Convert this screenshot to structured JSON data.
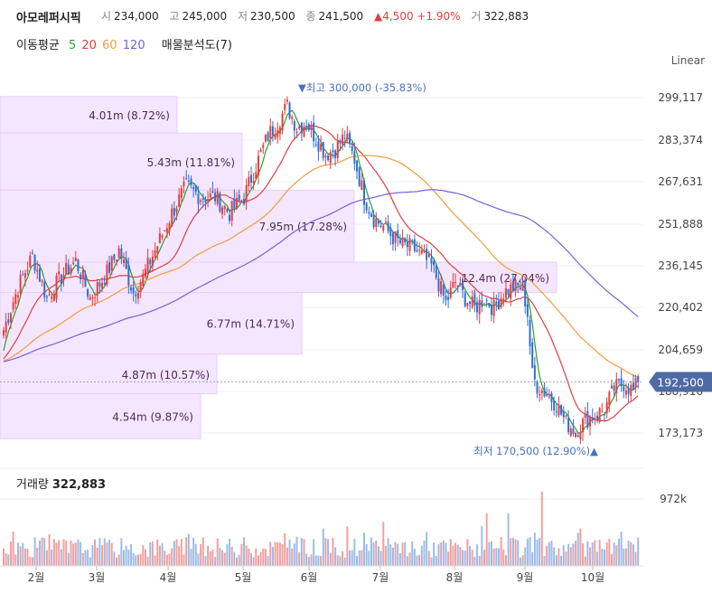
{
  "header": {
    "name": "아모레퍼시픽",
    "open_label": "시",
    "open": "234,000",
    "high_label": "고",
    "high": "245,000",
    "low_label": "저",
    "low": "230,500",
    "close_label": "종",
    "close": "241,500",
    "change": "▲4,500 +1.90%",
    "volume_label": "거",
    "volume": "322,883"
  },
  "indicators": {
    "ma_label": "이동평균",
    "ma": [
      {
        "period": "5",
        "color": "#2ca02c"
      },
      {
        "period": "20",
        "color": "#e03f3f"
      },
      {
        "period": "60",
        "color": "#f39c3c"
      },
      {
        "period": "120",
        "color": "#7b5fd6"
      }
    ],
    "vp_label": "매물분석도(7)"
  },
  "scale_mode": "Linear",
  "volume_panel": {
    "label": "거래량",
    "value": "322,883",
    "tick": "972k"
  },
  "chart_data": {
    "type": "candlestick",
    "y_ticks": [
      "299,117",
      "283,374",
      "267,631",
      "251,888",
      "236,145",
      "220,402",
      "204,659",
      "188,916",
      "173,173"
    ],
    "y_range": [
      166000,
      306000
    ],
    "x_ticks": [
      "2월",
      "3월",
      "4월",
      "5월",
      "6월",
      "7월",
      "8월",
      "9월",
      "10월"
    ],
    "last_price_label": "192,500",
    "last_price": 192500,
    "max_annotation": "▼최고 300,000 (-35.83%)",
    "min_annotation": "최저 170,500 (12.90%)▲",
    "volume_profile": [
      {
        "label": "4.01m (8.72%)",
        "price_range": [
          286000,
          299500
        ]
      },
      {
        "label": "5.43m (11.81%)",
        "price_range": [
          264500,
          286000
        ]
      },
      {
        "label": "7.95m (17.28%)",
        "price_range": [
          237500,
          264500
        ]
      },
      {
        "label": "12.4m (27.04%)",
        "price_range": [
          226000,
          237500
        ]
      },
      {
        "label": "6.77m (14.71%)",
        "price_range": [
          203000,
          226000
        ]
      },
      {
        "label": "4.87m (10.57%)",
        "price_range": [
          188000,
          203000
        ]
      },
      {
        "label": "4.54m (9.87%)",
        "price_range": [
          171000,
          188000
        ]
      }
    ],
    "trend_points": [
      [
        0,
        212000
      ],
      [
        6,
        228000
      ],
      [
        12,
        240000
      ],
      [
        18,
        224000
      ],
      [
        24,
        232000
      ],
      [
        30,
        238000
      ],
      [
        36,
        224000
      ],
      [
        42,
        232000
      ],
      [
        48,
        242000
      ],
      [
        54,
        226000
      ],
      [
        58,
        232000
      ],
      [
        64,
        244000
      ],
      [
        70,
        256000
      ],
      [
        76,
        266000
      ],
      [
        82,
        262000
      ],
      [
        88,
        262000
      ],
      [
        94,
        256000
      ],
      [
        100,
        262000
      ],
      [
        106,
        276000
      ],
      [
        110,
        285000
      ],
      [
        114,
        290000
      ],
      [
        118,
        296000
      ],
      [
        122,
        288000
      ],
      [
        126,
        290000
      ],
      [
        130,
        284000
      ],
      [
        134,
        278000
      ],
      [
        138,
        280000
      ],
      [
        142,
        285000
      ],
      [
        146,
        276000
      ],
      [
        150,
        262000
      ],
      [
        154,
        254000
      ],
      [
        158,
        251000
      ],
      [
        162,
        247000
      ],
      [
        166,
        244000
      ],
      [
        170,
        243000
      ],
      [
        174,
        240000
      ],
      [
        178,
        236000
      ],
      [
        180,
        232000
      ],
      [
        184,
        222000
      ],
      [
        188,
        230000
      ],
      [
        192,
        224000
      ],
      [
        196,
        220000
      ],
      [
        200,
        224000
      ],
      [
        204,
        220000
      ],
      [
        208,
        226000
      ],
      [
        212,
        228000
      ],
      [
        216,
        228000
      ],
      [
        218,
        218000
      ],
      [
        220,
        195000
      ],
      [
        222,
        191000
      ],
      [
        226,
        188000
      ],
      [
        230,
        184000
      ],
      [
        234,
        177000
      ],
      [
        238,
        174000
      ],
      [
        242,
        178000
      ],
      [
        246,
        180000
      ],
      [
        250,
        182000
      ],
      [
        254,
        190000
      ],
      [
        258,
        192000
      ],
      [
        262,
        189000
      ],
      [
        264,
        192500
      ]
    ],
    "volume_max": 972000
  }
}
